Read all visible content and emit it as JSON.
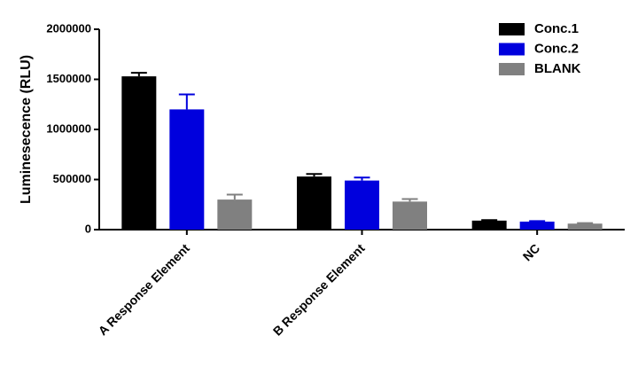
{
  "chart_data": {
    "type": "bar",
    "y_label": "Luminesecence (RLU)",
    "categories": [
      "A Response Element",
      "B Response Element",
      "NC"
    ],
    "series": [
      {
        "name": "Conc.1",
        "color": "#000000",
        "values": [
          1530000,
          530000,
          90000
        ],
        "errors": [
          35000,
          25000,
          5000
        ]
      },
      {
        "name": "Conc.2",
        "color": "#0000dd",
        "values": [
          1200000,
          490000,
          80000
        ],
        "errors": [
          150000,
          30000,
          5000
        ]
      },
      {
        "name": "BLANK",
        "color": "#808080",
        "values": [
          300000,
          280000,
          60000
        ],
        "errors": [
          50000,
          25000,
          5000
        ]
      }
    ],
    "ylim": [
      0,
      2000000
    ],
    "yticks": [
      0,
      500000,
      1000000,
      1500000,
      2000000
    ],
    "legend": "upper right"
  }
}
